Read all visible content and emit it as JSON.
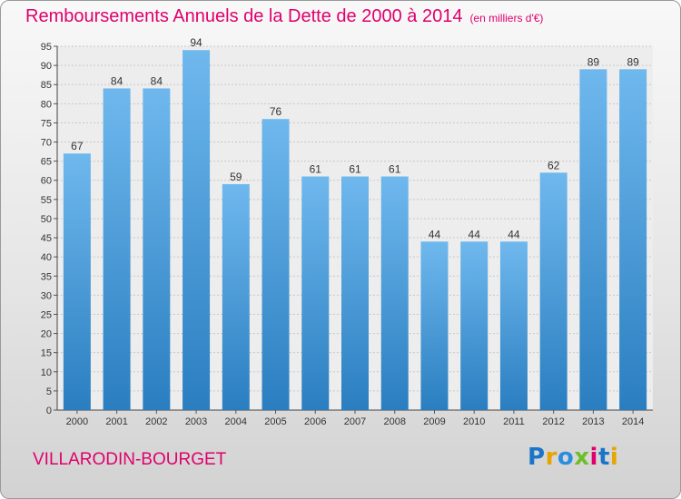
{
  "header": {
    "title": "Remboursements Annuels de la Dette de 2000 à 2014",
    "unit": "(en milliers d'€)"
  },
  "footer": {
    "municipality": "VILLARODIN-BOURGET",
    "logo": [
      "P",
      "r",
      "o",
      "x",
      "i",
      "t",
      "i"
    ]
  },
  "colors": {
    "title": "#e0006c",
    "bar_top": "#6fb8ee",
    "bar_bottom": "#2a7ec0",
    "logo": [
      "#1a75c9",
      "#e8a400",
      "#2a8ee0",
      "#6cbf2a",
      "#e0006c",
      "#1a75c9",
      "#e8a400"
    ]
  },
  "chart_data": {
    "type": "bar",
    "title": "Remboursements Annuels de la Dette de 2000 à 2014",
    "subtitle": "(en milliers d'€)",
    "xlabel": "",
    "ylabel": "",
    "categories": [
      "2000",
      "2001",
      "2002",
      "2003",
      "2004",
      "2005",
      "2006",
      "2007",
      "2008",
      "2009",
      "2010",
      "2011",
      "2012",
      "2013",
      "2014"
    ],
    "values": [
      67,
      84,
      84,
      94,
      59,
      76,
      61,
      61,
      61,
      44,
      44,
      44,
      62,
      89,
      89
    ],
    "ylim": [
      0,
      95
    ],
    "yticks": [
      0,
      5,
      10,
      15,
      20,
      25,
      30,
      35,
      40,
      45,
      50,
      55,
      60,
      65,
      70,
      75,
      80,
      85,
      90,
      95
    ],
    "grid": true
  }
}
